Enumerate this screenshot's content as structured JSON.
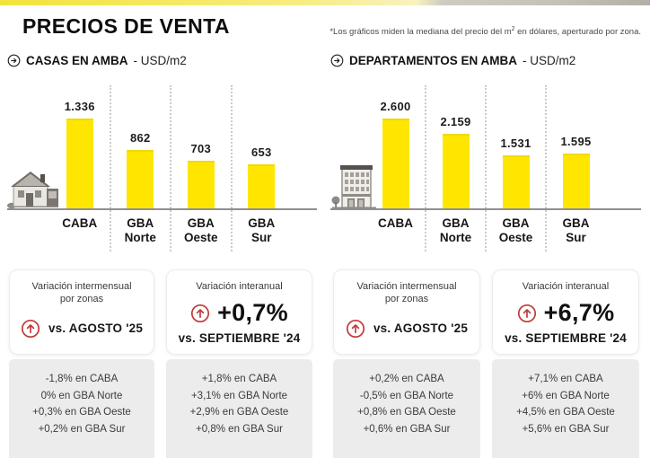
{
  "header": {
    "title": "PRECIOS DE VENTA",
    "note_prefix": "*Los gráficos miden la mediana del precio del m",
    "note_sup": "2",
    "note_suffix": " en dólares, aperturado por zona."
  },
  "colors": {
    "bar_yellow": "#FFE600",
    "panel_icon_red": "#C13B3B",
    "gray_block": "#ECECEC"
  },
  "icons": {
    "heading_icon": "arrow-right-circle",
    "panel_icon": "arrow-up-circle",
    "chart0_icon": "house",
    "chart1_icon": "building"
  },
  "chart_data": [
    {
      "type": "bar",
      "title": "CASAS EN AMBA - USD/m2",
      "heading_bold": "CASAS EN AMBA",
      "heading_suffix": " - USD/m2",
      "categories": [
        "CABA",
        "GBA Norte",
        "GBA Oeste",
        "GBA Sur"
      ],
      "values": [
        1336,
        862,
        703,
        653
      ],
      "value_labels": [
        "1.336",
        "862",
        "703",
        "653"
      ],
      "ylim": [
        0,
        1400
      ],
      "grid": false,
      "bar_color": "#FFE600"
    },
    {
      "type": "bar",
      "title": "DEPARTAMENTOS EN AMBA - USD/m2",
      "heading_bold": "DEPARTAMENTOS EN AMBA",
      "heading_suffix": " - USD/m2",
      "categories": [
        "CABA",
        "GBA Norte",
        "GBA Oeste",
        "GBA Sur"
      ],
      "values": [
        2600,
        2159,
        1531,
        1595
      ],
      "value_labels": [
        "2.600",
        "2.159",
        "1.531",
        "1.595"
      ],
      "ylim": [
        0,
        2700
      ],
      "grid": false,
      "bar_color": "#FFE600"
    }
  ],
  "panels": [
    {
      "title_line1": "Variación intermensual",
      "title_line2": "por zonas",
      "main_value": "",
      "vs_text": "vs. AGOSTO '25",
      "list": [
        "-1,8% en CABA",
        "0% en GBA Norte",
        "+0,3% en GBA Oeste",
        "+0,2% en GBA Sur"
      ]
    },
    {
      "title_line1": "Variación interanual",
      "title_line2": "",
      "main_value": "+0,7%",
      "vs_text": "vs. SEPTIEMBRE '24",
      "list": [
        "+1,8% en CABA",
        "+3,1% en GBA Norte",
        "+2,9% en GBA Oeste",
        "+0,8% en GBA Sur"
      ]
    },
    {
      "title_line1": "Variación intermensual",
      "title_line2": "por zonas",
      "main_value": "",
      "vs_text": "vs. AGOSTO '25",
      "list": [
        "+0,2% en CABA",
        "-0,5% en GBA Norte",
        "+0,8% en GBA Oeste",
        "+0,6% en GBA Sur"
      ]
    },
    {
      "title_line1": "Variación interanual",
      "title_line2": "",
      "main_value": "+6,7%",
      "vs_text": "vs. SEPTIEMBRE '24",
      "list": [
        "+7,1% en CABA",
        "+6% en GBA Norte",
        "+4,5% en GBA Oeste",
        "+5,6% en GBA Sur"
      ]
    }
  ]
}
